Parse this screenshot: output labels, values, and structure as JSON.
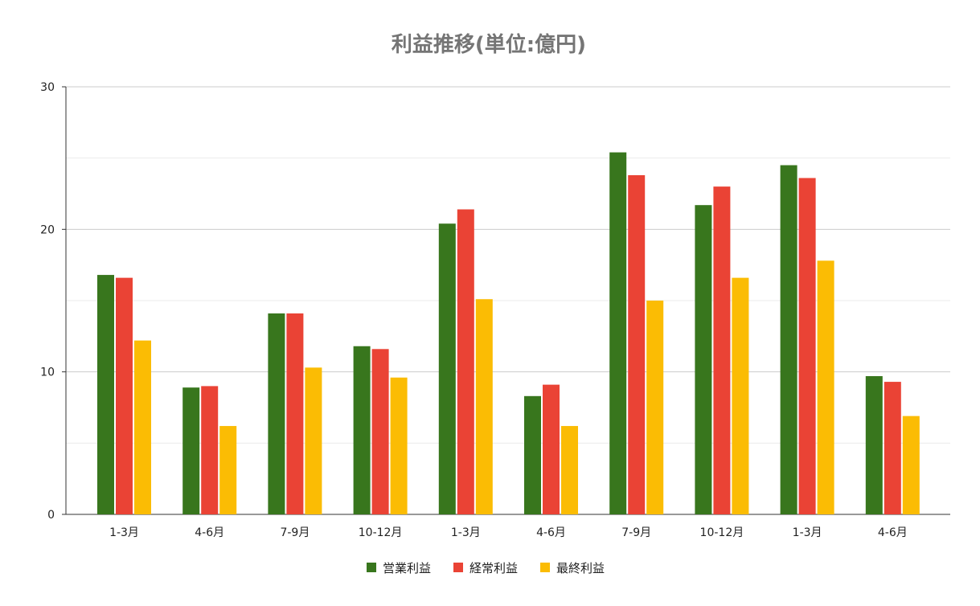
{
  "chart_data": {
    "type": "bar",
    "title": "利益推移(単位:億円)",
    "xlabel": "",
    "ylabel": "",
    "ylim": [
      0,
      30
    ],
    "yticks": [
      0,
      10,
      20,
      30
    ],
    "grid": true,
    "legend_position": "bottom",
    "categories": [
      "1-3月",
      "4-6月",
      "7-9月",
      "10-12月",
      "1-3月",
      "4-6月",
      "7-9月",
      "10-12月",
      "1-3月",
      "4-6月"
    ],
    "series": [
      {
        "name": "営業利益",
        "color": "#38761d",
        "values": [
          16.8,
          8.9,
          14.1,
          11.8,
          20.4,
          8.3,
          25.4,
          21.7,
          24.5,
          9.7
        ]
      },
      {
        "name": "経常利益",
        "color": "#ea4335",
        "values": [
          16.6,
          9.0,
          14.1,
          11.6,
          21.4,
          9.1,
          23.8,
          23.0,
          23.6,
          9.3
        ]
      },
      {
        "name": "最終利益",
        "color": "#fbbc04",
        "values": [
          12.2,
          6.2,
          10.3,
          9.6,
          15.1,
          6.2,
          15.0,
          16.6,
          17.8,
          6.9
        ]
      }
    ]
  }
}
